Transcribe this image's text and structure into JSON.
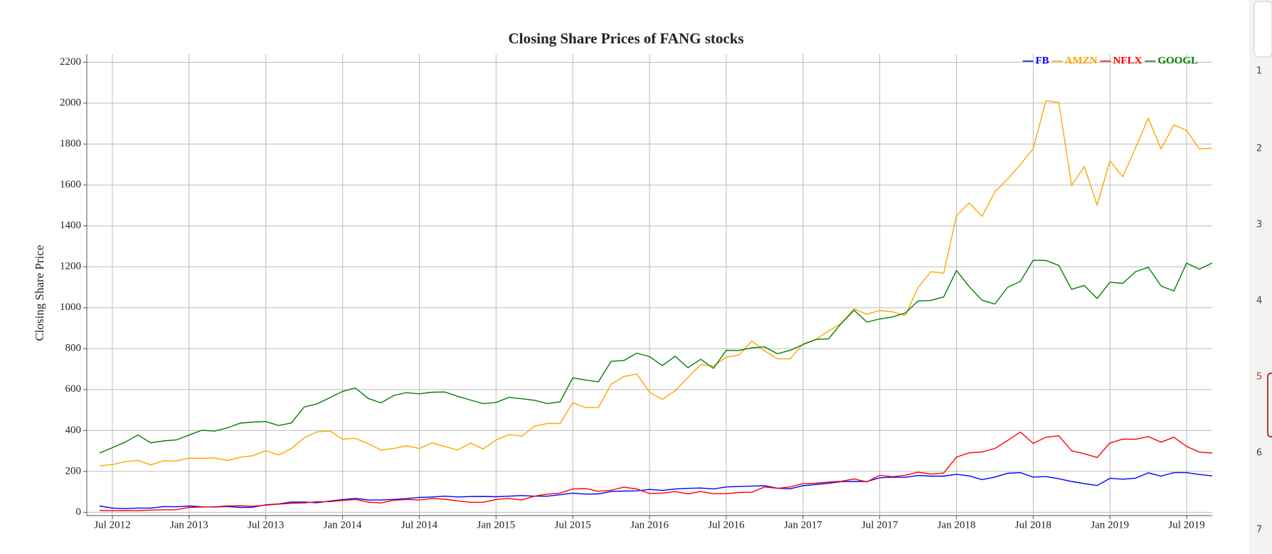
{
  "chart_data": {
    "type": "line",
    "title": "Closing Share Prices of FANG stocks",
    "y_label": "Closing Share Price",
    "x": [
      "2012-06",
      "2012-07",
      "2012-08",
      "2012-09",
      "2012-10",
      "2012-11",
      "2012-12",
      "2013-01",
      "2013-02",
      "2013-03",
      "2013-04",
      "2013-05",
      "2013-06",
      "2013-07",
      "2013-08",
      "2013-09",
      "2013-10",
      "2013-11",
      "2013-12",
      "2014-01",
      "2014-02",
      "2014-03",
      "2014-04",
      "2014-05",
      "2014-06",
      "2014-07",
      "2014-08",
      "2014-09",
      "2014-10",
      "2014-11",
      "2014-12",
      "2015-01",
      "2015-02",
      "2015-03",
      "2015-04",
      "2015-05",
      "2015-06",
      "2015-07",
      "2015-08",
      "2015-09",
      "2015-10",
      "2015-11",
      "2015-12",
      "2016-01",
      "2016-02",
      "2016-03",
      "2016-04",
      "2016-05",
      "2016-06",
      "2016-07",
      "2016-08",
      "2016-09",
      "2016-10",
      "2016-11",
      "2016-12",
      "2017-01",
      "2017-02",
      "2017-03",
      "2017-04",
      "2017-05",
      "2017-06",
      "2017-07",
      "2017-08",
      "2017-09",
      "2017-10",
      "2017-11",
      "2017-12",
      "2018-01",
      "2018-02",
      "2018-03",
      "2018-04",
      "2018-05",
      "2018-06",
      "2018-07",
      "2018-08",
      "2018-09",
      "2018-10",
      "2018-11",
      "2018-12",
      "2019-01",
      "2019-02",
      "2019-03",
      "2019-04",
      "2019-05",
      "2019-06",
      "2019-07",
      "2019-08",
      "2019-09"
    ],
    "series": [
      {
        "name": "FB",
        "color": "#0000ff",
        "values": [
          31,
          21,
          18,
          21,
          21,
          28,
          27,
          31,
          27,
          26,
          28,
          24,
          25,
          37,
          41,
          50,
          50,
          47,
          55,
          62,
          68,
          60,
          60,
          63,
          67,
          73,
          75,
          79,
          75,
          77,
          78,
          76,
          79,
          82,
          79,
          79,
          86,
          94,
          89,
          90,
          102,
          104,
          105,
          112,
          107,
          114,
          117,
          119,
          114,
          124,
          126,
          128,
          130,
          118,
          115,
          130,
          136,
          142,
          150,
          151,
          151,
          169,
          172,
          171,
          180,
          177,
          177,
          186,
          178,
          160,
          172,
          191,
          194,
          172,
          175,
          164,
          151,
          140,
          131,
          166,
          162,
          167,
          193,
          177,
          194,
          194,
          185,
          178
        ]
      },
      {
        "name": "AMZN",
        "color": "#ffa500",
        "values": [
          228,
          233,
          248,
          254,
          232,
          252,
          251,
          265,
          264,
          266,
          253,
          269,
          277,
          301,
          280,
          312,
          364,
          393,
          398,
          358,
          362,
          336,
          304,
          312,
          325,
          312,
          339,
          322,
          305,
          338,
          310,
          354,
          380,
          372,
          421,
          434,
          434,
          536,
          512,
          512,
          626,
          664,
          676,
          587,
          552,
          594,
          659,
          722,
          715,
          758,
          769,
          837,
          789,
          750,
          750,
          823,
          845,
          886,
          924,
          995,
          968,
          987,
          980,
          961,
          1100,
          1176,
          1169,
          1450,
          1512,
          1447,
          1566,
          1629,
          1700,
          1777,
          2012,
          2003,
          1598,
          1690,
          1502,
          1718,
          1640,
          1781,
          1926,
          1776,
          1894,
          1866,
          1776,
          1780
        ]
      },
      {
        "name": "NFLX",
        "color": "#ff0000",
        "values": [
          9,
          8,
          9,
          8,
          11,
          12,
          13,
          24,
          26,
          27,
          31,
          32,
          30,
          35,
          40,
          44,
          46,
          52,
          52,
          58,
          63,
          50,
          46,
          59,
          63,
          60,
          68,
          64,
          56,
          49,
          49,
          63,
          68,
          60,
          79,
          89,
          94,
          114,
          116,
          103,
          108,
          123,
          114,
          92,
          94,
          102,
          90,
          102,
          91,
          91,
          97,
          98,
          124,
          117,
          124,
          140,
          142,
          148,
          152,
          163,
          149,
          181,
          174,
          181,
          196,
          187,
          192,
          270,
          291,
          295,
          312,
          351,
          392,
          337,
          367,
          374,
          301,
          286,
          268,
          339,
          358,
          357,
          370,
          343,
          367,
          322,
          294,
          290
        ]
      },
      {
        "name": "GOOGL",
        "color": "#008000",
        "values": [
          290,
          316,
          343,
          378,
          340,
          349,
          354,
          378,
          401,
          397,
          413,
          436,
          441,
          444,
          424,
          437,
          515,
          530,
          560,
          591,
          608,
          557,
          535,
          571,
          585,
          579,
          587,
          588,
          567,
          549,
          531,
          537,
          562,
          555,
          548,
          532,
          540,
          657,
          647,
          638,
          738,
          742,
          778,
          761,
          717,
          763,
          707,
          748,
          704,
          792,
          791,
          804,
          809,
          775,
          792,
          820,
          845,
          848,
          924,
          988,
          930,
          945,
          955,
          974,
          1033,
          1036,
          1053,
          1182,
          1103,
          1037,
          1018,
          1100,
          1129,
          1232,
          1231,
          1207,
          1090,
          1109,
          1045,
          1125,
          1119,
          1176,
          1198,
          1106,
          1082,
          1218,
          1188,
          1219
        ]
      }
    ],
    "xlim": [
      "2012-05",
      "2019-09"
    ],
    "xticks": [
      {
        "value": "2012-07",
        "label": "Jul 2012"
      },
      {
        "value": "2013-01",
        "label": "Jan 2013"
      },
      {
        "value": "2013-07",
        "label": "Jul 2013"
      },
      {
        "value": "2014-01",
        "label": "Jan 2014"
      },
      {
        "value": "2014-07",
        "label": "Jul 2014"
      },
      {
        "value": "2015-01",
        "label": "Jan 2015"
      },
      {
        "value": "2015-07",
        "label": "Jul 2015"
      },
      {
        "value": "2016-01",
        "label": "Jan 2016"
      },
      {
        "value": "2016-07",
        "label": "Jul 2016"
      },
      {
        "value": "2017-01",
        "label": "Jan 2017"
      },
      {
        "value": "2017-07",
        "label": "Jul 2017"
      },
      {
        "value": "2018-01",
        "label": "Jan 2018"
      },
      {
        "value": "2018-07",
        "label": "Jul 2018"
      },
      {
        "value": "2019-01",
        "label": "Jan 2019"
      },
      {
        "value": "2019-07",
        "label": "Jul 2019"
      }
    ],
    "ylim": [
      -16,
      2240
    ],
    "yticks": [
      0,
      200,
      400,
      600,
      800,
      1000,
      1200,
      1400,
      1600,
      1800,
      2000,
      2200
    ],
    "grid": true,
    "legend": "upper right"
  },
  "sidebar": {
    "items": [
      "1",
      "2",
      "3",
      "4",
      "5",
      "6",
      "7"
    ]
  }
}
